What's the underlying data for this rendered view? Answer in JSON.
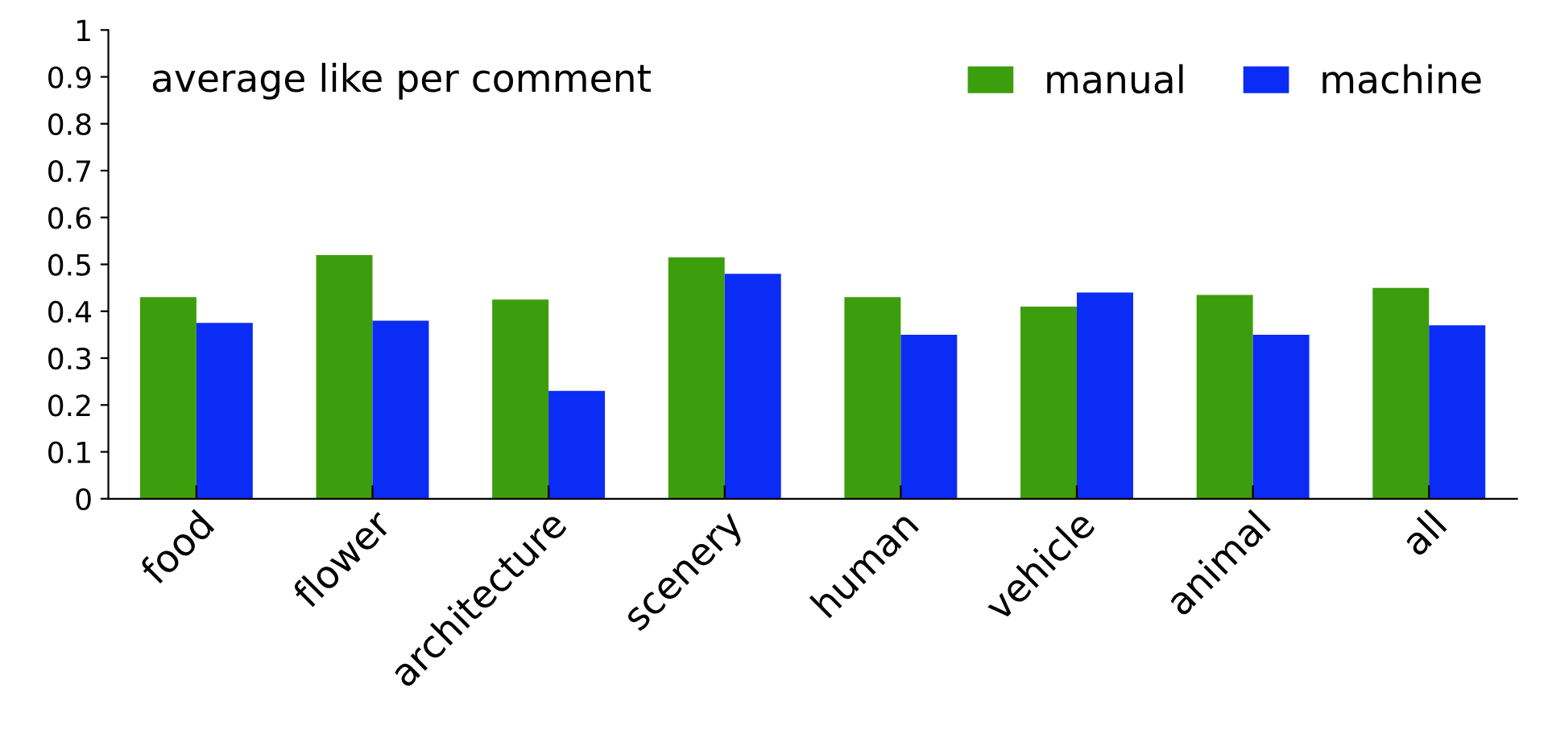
{
  "chart_data": {
    "type": "bar",
    "title": "average like per comment",
    "categories": [
      "food",
      "flower",
      "architecture",
      "scenery",
      "human",
      "vehicle",
      "animal",
      "all"
    ],
    "series": [
      {
        "name": "manual",
        "color": "#3c9e0c",
        "values": [
          0.43,
          0.52,
          0.425,
          0.515,
          0.43,
          0.41,
          0.435,
          0.45
        ]
      },
      {
        "name": "machine",
        "color": "#0a2cf5",
        "values": [
          0.375,
          0.38,
          0.23,
          0.48,
          0.35,
          0.44,
          0.35,
          0.37
        ]
      }
    ],
    "ylim": [
      0,
      1
    ],
    "yticks": [
      0,
      0.1,
      0.2,
      0.3,
      0.4,
      0.5,
      0.6,
      0.7,
      0.8,
      0.9,
      1
    ],
    "grid": false,
    "legend": "top right"
  }
}
